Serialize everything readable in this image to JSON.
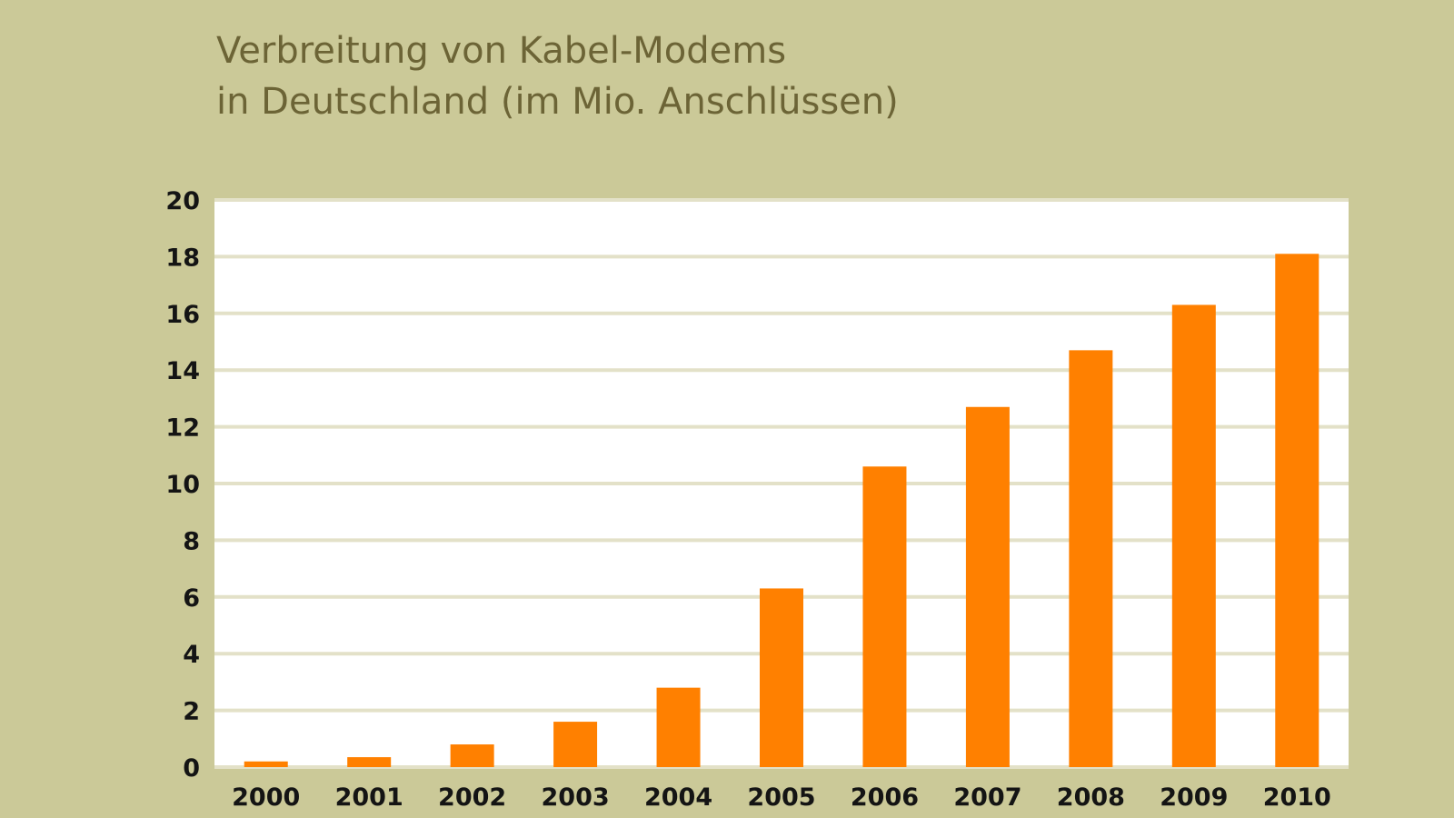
{
  "chart_data": {
    "type": "bar",
    "title": "Verbreitung von Kabel-Modems in Deutschland (im Mio. Anschlüssen)",
    "title_lines": [
      "Verbreitung von Kabel-Modems",
      "in Deutschland (im Mio. Anschlüssen)"
    ],
    "xlabel": "",
    "ylabel": "",
    "categories": [
      "2000",
      "2001",
      "2002",
      "2003",
      "2004",
      "2005",
      "2006",
      "2007",
      "2008",
      "2009",
      "2010"
    ],
    "values": [
      0.2,
      0.35,
      0.8,
      1.6,
      2.8,
      6.3,
      10.6,
      12.7,
      14.7,
      16.3,
      18.1
    ],
    "ylim": [
      0,
      20
    ],
    "yticks": [
      "0",
      "2",
      "4",
      "6",
      "8",
      "10",
      "12",
      "14",
      "16",
      "18",
      "20"
    ],
    "grid": true,
    "legend": "none",
    "colors": {
      "background": "#cbc998",
      "plot_background": "#ffffff",
      "grid": "#e3e1c8",
      "bar": "#ff8000",
      "title": "#6c6436",
      "tick_label": "#141414"
    }
  }
}
